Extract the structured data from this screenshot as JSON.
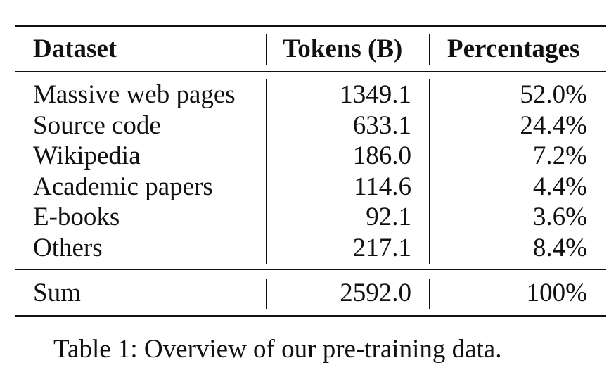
{
  "table": {
    "headers": {
      "dataset": "Dataset",
      "tokens": "Tokens (B)",
      "percentages": "Percentages"
    },
    "rows": [
      {
        "dataset": "Massive web pages",
        "tokens": "1349.1",
        "percent": "52.0%"
      },
      {
        "dataset": "Source code",
        "tokens": "633.1",
        "percent": "24.4%"
      },
      {
        "dataset": "Wikipedia",
        "tokens": "186.0",
        "percent": "7.2%"
      },
      {
        "dataset": "Academic papers",
        "tokens": "114.6",
        "percent": "4.4%"
      },
      {
        "dataset": "E-books",
        "tokens": "92.1",
        "percent": "3.6%"
      },
      {
        "dataset": "Others",
        "tokens": "217.1",
        "percent": "8.4%"
      }
    ],
    "sum": {
      "dataset": "Sum",
      "tokens": "2592.0",
      "percent": "100%"
    }
  },
  "caption": "Table 1: Overview of our pre-training data."
}
